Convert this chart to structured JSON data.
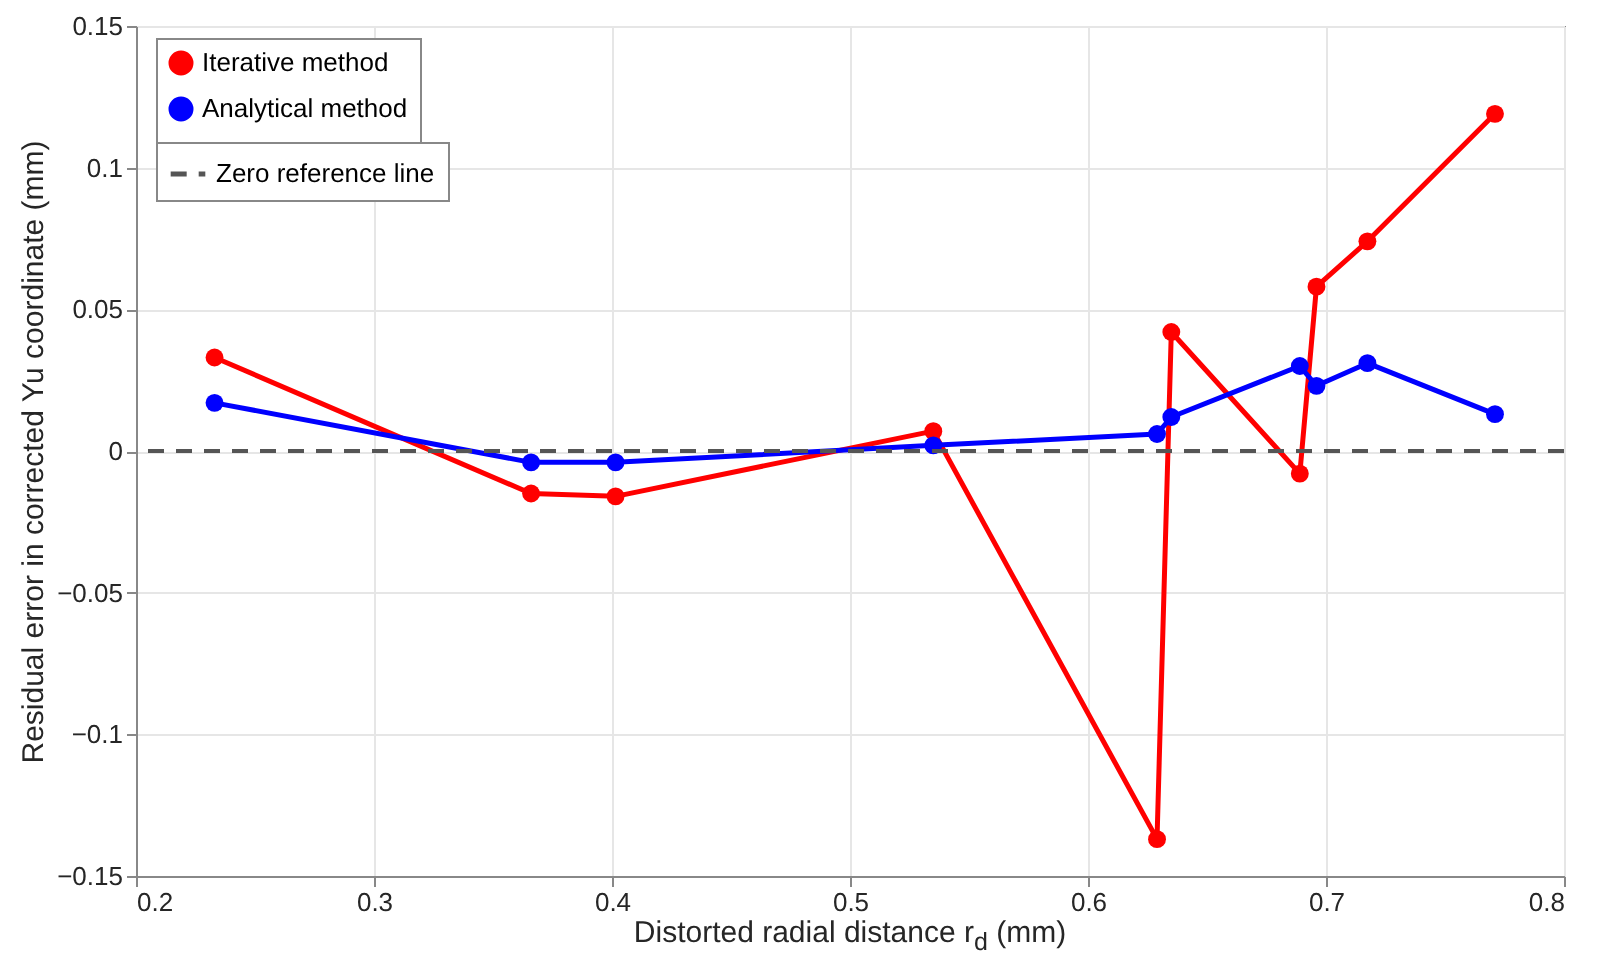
{
  "chart_data": {
    "type": "line",
    "xlabel": "Distorted radial distance r$_{d}$ (mm)",
    "ylabel": "Residual error in corrected Yu coordinate (mm)",
    "x": [
      0.233,
      0.366,
      0.4015,
      0.535,
      0.629,
      0.635,
      0.689,
      0.696,
      0.7174,
      0.771
    ],
    "series": [
      {
        "name": "Iterative method",
        "color": "#ff0000",
        "values": [
          0.033,
          -0.015,
          -0.016,
          0.007,
          -0.137,
          0.042,
          -0.008,
          0.058,
          0.074,
          0.119
        ]
      },
      {
        "name": "Analytical method",
        "color": "#0000ff",
        "values": [
          0.017,
          -0.004,
          -0.004,
          0.002,
          0.006,
          0.012,
          0.03,
          0.023,
          0.031,
          0.013
        ]
      }
    ],
    "ref_lines": [
      {
        "axis": "y",
        "value": 0,
        "label": "Zero reference line",
        "color": "#555555",
        "line_style": "dashed"
      }
    ],
    "xlim": [
      0.2,
      0.8
    ],
    "xticks": [
      0.2,
      0.3,
      0.4,
      0.5,
      0.6,
      0.7,
      0.8
    ],
    "ylim": [
      -0.15,
      0.15
    ],
    "yticks": [
      -0.15,
      -0.1,
      -0.05,
      0,
      0.05,
      0.1,
      0.15
    ],
    "grid": true,
    "legend": "top left",
    "marker": "circle",
    "line_style": "solid"
  }
}
